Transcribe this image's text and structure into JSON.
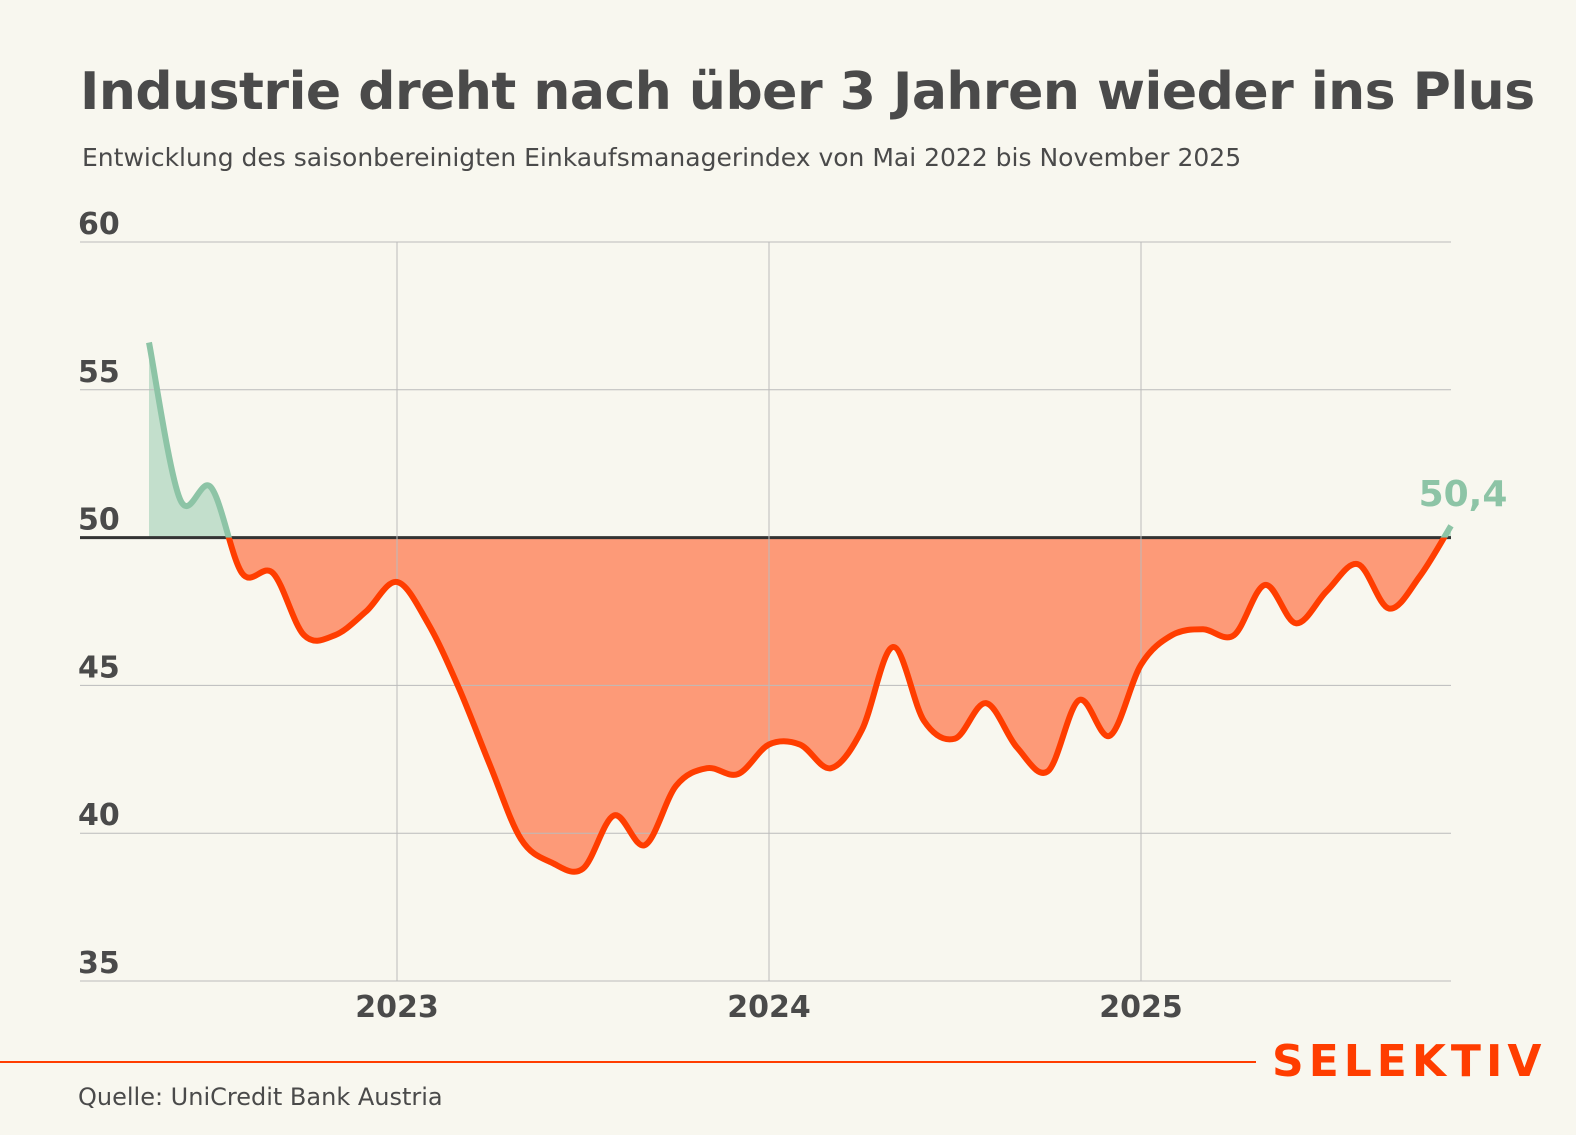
{
  "title": "Industrie dreht nach über 3 Jahren wieder ins Plus",
  "subtitle": "Entwicklung des saisonbereinigten Einkaufsmanagerindex von Mai 2022 bis November 2025",
  "source": "Quelle: UniCredit Bank Austria",
  "logo": "SELEKTIV",
  "colors": {
    "above": "#8dc4a6",
    "above_fill": "#c3dfcc",
    "below": "#ff3d00",
    "below_fill": "#fd9a78",
    "accent": "#ff3d00"
  },
  "chart_data": {
    "type": "area",
    "title": "Industrie dreht nach über 3 Jahren wieder ins Plus",
    "xlabel": "",
    "ylabel": "",
    "ylim": [
      35,
      60
    ],
    "yticks": [
      35,
      40,
      45,
      50,
      55,
      60
    ],
    "ytick_labels": [
      "35",
      "40",
      "45",
      "50",
      "55",
      "60"
    ],
    "baseline": 50,
    "xticks": [
      "2023",
      "2024",
      "2025"
    ],
    "start": "2022-05",
    "end": "2025-11",
    "values": [
      56.6,
      51.3,
      51.7,
      48.8,
      48.8,
      46.7,
      46.7,
      47.5,
      48.5,
      47.1,
      44.9,
      42.3,
      39.8,
      39.0,
      38.8,
      40.6,
      39.6,
      41.6,
      42.2,
      42.0,
      43.0,
      43.0,
      42.2,
      43.5,
      46.3,
      43.8,
      43.2,
      44.4,
      42.9,
      42.1,
      44.5,
      43.3,
      45.7,
      46.7,
      46.9,
      46.7,
      48.4,
      47.1,
      48.2,
      49.1,
      47.6,
      48.7,
      50.4
    ],
    "annotation": "50,4",
    "grid": true
  }
}
